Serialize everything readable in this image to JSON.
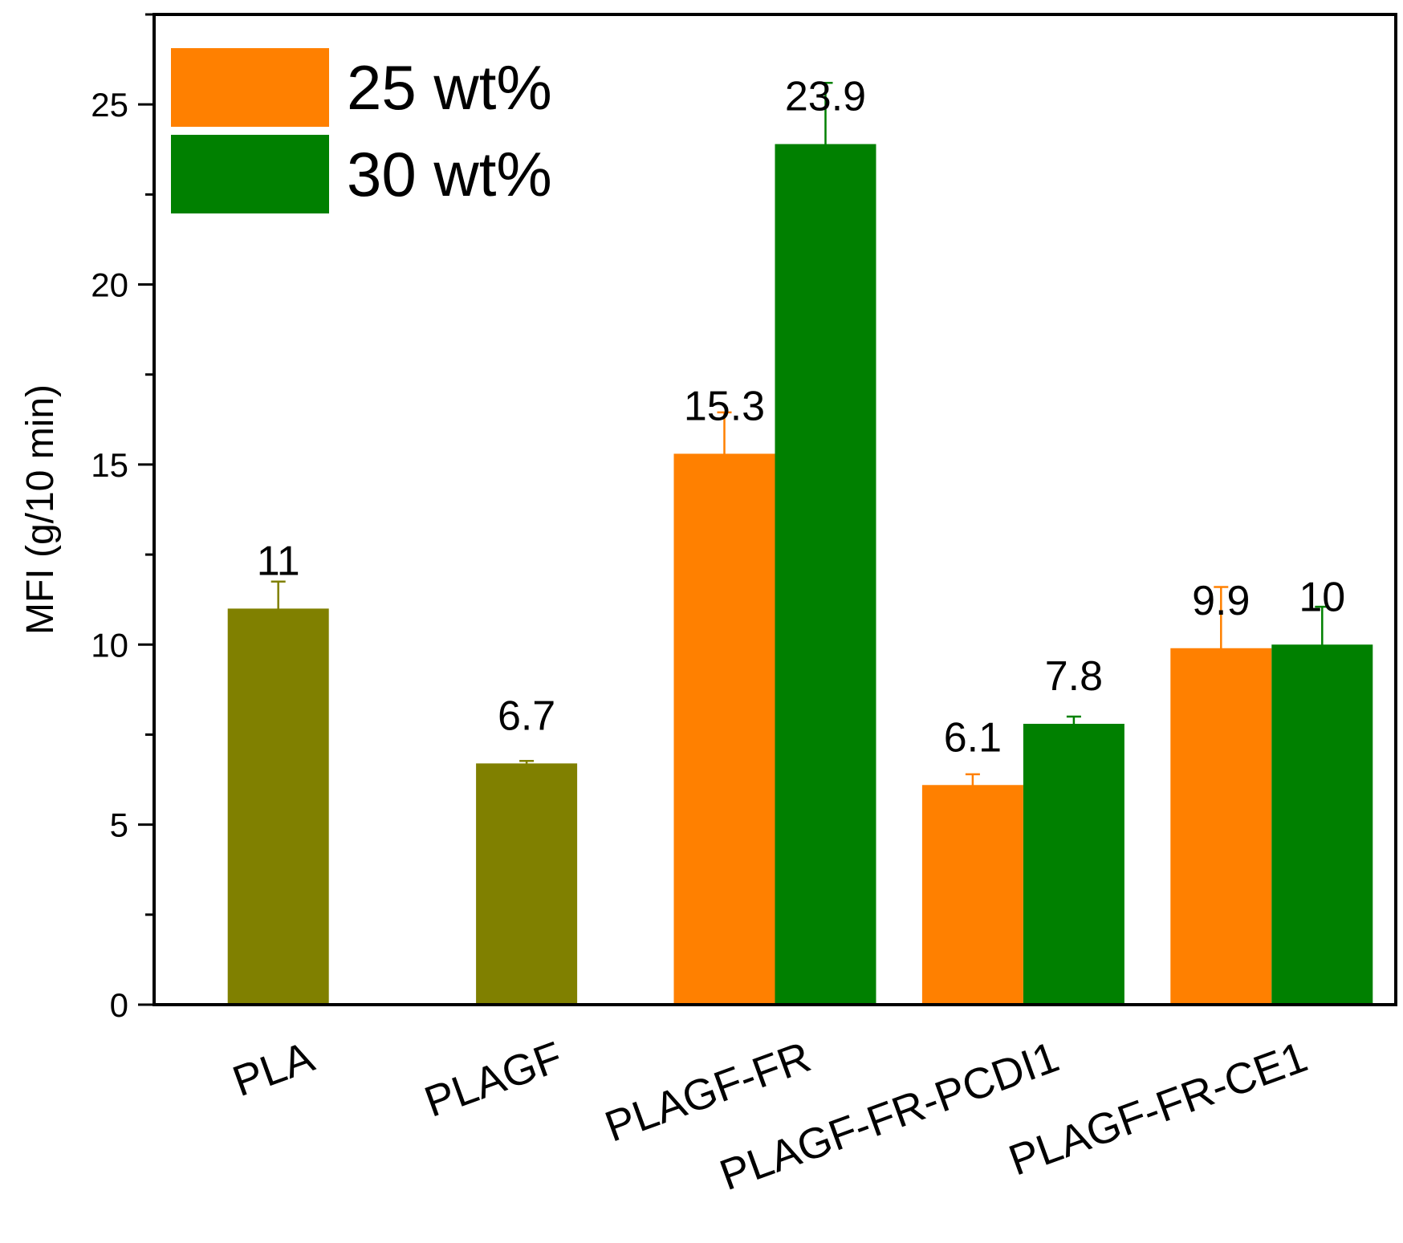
{
  "chart_data": {
    "type": "bar",
    "ylabel": "MFI (g/10 min)",
    "xlabel": "",
    "ylim": [
      0,
      27.5
    ],
    "yticks": [
      0,
      5,
      10,
      15,
      20,
      25
    ],
    "categories": [
      "PLA",
      "PLAGF",
      "PLAGF-FR",
      "PLAGF-FR-PCDI1",
      "PLAGF-FR-CE1"
    ],
    "single_series": {
      "color": "#808000",
      "values": [
        11,
        6.7,
        null,
        null,
        null
      ],
      "errors": [
        0.75,
        0.07,
        null,
        null,
        null
      ],
      "labels": [
        "11",
        "6.7",
        "",
        "",
        ""
      ]
    },
    "series": [
      {
        "name": "25 wt%",
        "color": "#FF8000",
        "values": [
          null,
          null,
          15.3,
          6.1,
          9.9
        ],
        "errors": [
          null,
          null,
          1.15,
          0.3,
          1.7
        ],
        "labels": [
          "",
          "",
          "15.3",
          "6.1",
          "9.9"
        ]
      },
      {
        "name": "30 wt%",
        "color": "#008000",
        "values": [
          null,
          null,
          23.9,
          7.8,
          10
        ],
        "errors": [
          null,
          null,
          1.7,
          0.2,
          1.05
        ],
        "labels": [
          "",
          "",
          "23.9",
          "7.8",
          "10"
        ]
      }
    ],
    "legend": "top-left",
    "grid": false
  }
}
